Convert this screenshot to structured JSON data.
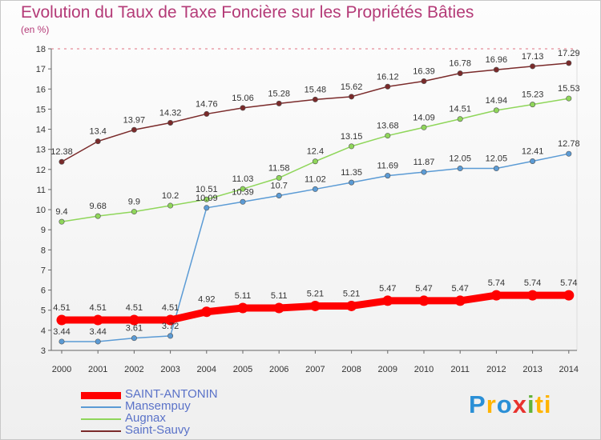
{
  "title": "Evolution du Taux de Taxe Foncière sur les Propriétés Bâties",
  "subtitle": "(en %)",
  "logo_text": "Proxiti",
  "chart_data": {
    "type": "line",
    "x": [
      "2000",
      "2001",
      "2002",
      "2003",
      "2004",
      "2005",
      "2006",
      "2007",
      "2008",
      "2009",
      "2010",
      "2011",
      "2012",
      "2013",
      "2014"
    ],
    "ylim": [
      3,
      18
    ],
    "yticks": [
      3,
      4,
      5,
      6,
      7,
      8,
      9,
      10,
      11,
      12,
      13,
      14,
      15,
      16,
      17,
      18
    ],
    "grid": false,
    "legend": "bottom-left",
    "series": [
      {
        "name": "SAINT-ANTONIN",
        "color": "#ff0000",
        "values": [
          4.51,
          4.51,
          4.51,
          4.51,
          4.92,
          5.11,
          5.11,
          5.21,
          5.21,
          5.47,
          5.47,
          5.47,
          5.74,
          5.74,
          5.74
        ],
        "labels": [
          "4.51",
          "4.51",
          "4.51",
          "4.51",
          "4.92",
          "5.11",
          "5.11",
          "5.21",
          "5.21",
          "5.47",
          "5.47",
          "5.47",
          "5.74",
          "5.74",
          "5.74"
        ]
      },
      {
        "name": "Mansempuy",
        "color": "#5b9bd5",
        "values": [
          3.44,
          3.44,
          3.61,
          3.72,
          10.09,
          10.39,
          10.7,
          11.02,
          11.35,
          11.69,
          11.87,
          12.05,
          12.05,
          12.41,
          12.78
        ],
        "labels": [
          "3.44",
          "3.44",
          "3.61",
          "3.72",
          "10.09",
          "10.39",
          "10.7",
          "11.02",
          "11.35",
          "11.69",
          "11.87",
          "12.05",
          "12.05",
          "12.41",
          "12.78"
        ]
      },
      {
        "name": "Augnax",
        "color": "#8fd65a",
        "values": [
          9.4,
          9.68,
          9.9,
          10.2,
          10.51,
          11.03,
          11.58,
          12.4,
          13.15,
          13.68,
          14.09,
          14.51,
          14.94,
          15.23,
          15.53
        ],
        "labels": [
          "9.4",
          "9.68",
          "9.9",
          "10.2",
          "10.51",
          "11.03",
          "11.58",
          "12.4",
          "13.15",
          "13.68",
          "14.09",
          "14.51",
          "14.94",
          "15.23",
          "15.53"
        ]
      },
      {
        "name": "Saint-Sauvy",
        "color": "#7a2a2a",
        "values": [
          12.38,
          13.4,
          13.97,
          14.32,
          14.76,
          15.06,
          15.28,
          15.48,
          15.62,
          16.12,
          16.39,
          16.78,
          16.96,
          17.13,
          17.29
        ],
        "labels": [
          "12.38",
          "13.4",
          "13.97",
          "14.32",
          "14.76",
          "15.06",
          "15.28",
          "15.48",
          "15.62",
          "16.12",
          "16.39",
          "16.78",
          "16.96",
          "17.13",
          "17.29"
        ]
      }
    ]
  }
}
